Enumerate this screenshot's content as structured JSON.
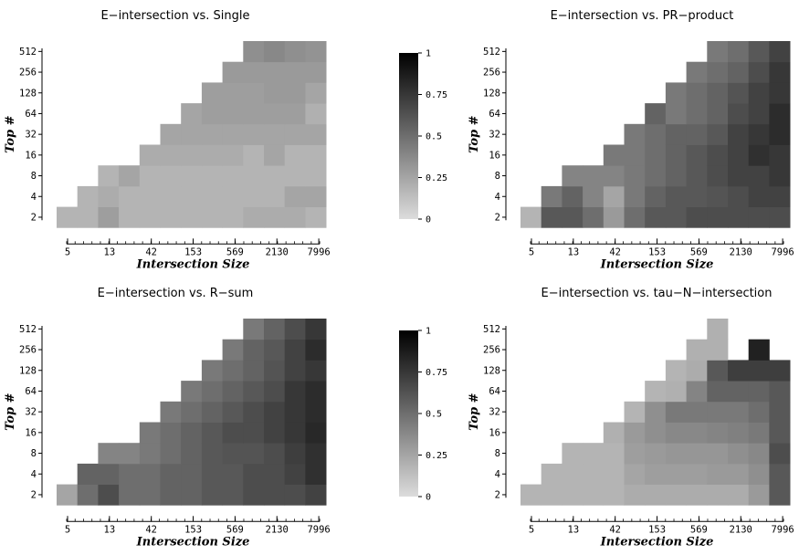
{
  "chart_data": [
    {
      "type": "heatmap",
      "title": "E−intersection vs. Single",
      "xlabel": "Intersection Size",
      "ylabel": "Top #",
      "x_ticks": [
        "5",
        "13",
        "42",
        "153",
        "569",
        "2130",
        "7996"
      ],
      "y_ticks": [
        "2",
        "4",
        "8",
        "16",
        "32",
        "64",
        "128",
        "256",
        "512"
      ],
      "row_starts": [
        0,
        1,
        2,
        4,
        5,
        6,
        7,
        8,
        9
      ],
      "row_ends": [
        12,
        12,
        12,
        12,
        12,
        12,
        12,
        12,
        12
      ],
      "values": [
        [
          0.18,
          0.18,
          0.28,
          0.18,
          0.18,
          0.18,
          0.18,
          0.18,
          0.18,
          0.22,
          0.22,
          0.22,
          0.18
        ],
        [
          null,
          0.18,
          0.22,
          0.18,
          0.18,
          0.18,
          0.18,
          0.18,
          0.18,
          0.18,
          0.18,
          0.25,
          0.25
        ],
        [
          null,
          null,
          0.18,
          0.25,
          0.18,
          0.18,
          0.18,
          0.18,
          0.18,
          0.18,
          0.18,
          0.18,
          0.18
        ],
        [
          null,
          null,
          null,
          null,
          0.22,
          0.22,
          0.22,
          0.22,
          0.22,
          0.18,
          0.25,
          0.18,
          0.18
        ],
        [
          null,
          null,
          null,
          null,
          null,
          0.25,
          0.25,
          0.25,
          0.25,
          0.25,
          0.25,
          0.25,
          0.25
        ],
        [
          null,
          null,
          null,
          null,
          null,
          null,
          0.25,
          0.28,
          0.28,
          0.28,
          0.28,
          0.28,
          0.2
        ],
        [
          null,
          null,
          null,
          null,
          null,
          null,
          null,
          0.28,
          0.28,
          0.28,
          0.3,
          0.3,
          0.25
        ],
        [
          null,
          null,
          null,
          null,
          null,
          null,
          null,
          null,
          0.3,
          0.3,
          0.3,
          0.3,
          0.3
        ],
        [
          null,
          null,
          null,
          null,
          null,
          null,
          null,
          null,
          null,
          0.35,
          0.38,
          0.35,
          0.33
        ]
      ]
    },
    {
      "type": "heatmap",
      "title": "E−intersection vs. PR−product",
      "xlabel": "Intersection Size",
      "ylabel": "Top #",
      "x_ticks": [
        "5",
        "13",
        "42",
        "153",
        "569",
        "2130",
        "7996"
      ],
      "y_ticks": [
        "2",
        "4",
        "8",
        "16",
        "32",
        "64",
        "128",
        "256",
        "512"
      ],
      "row_starts": [
        0,
        1,
        2,
        4,
        5,
        6,
        7,
        8,
        9
      ],
      "row_ends": [
        12,
        12,
        12,
        12,
        12,
        12,
        12,
        12,
        12
      ],
      "values": [
        [
          0.18,
          0.6,
          0.6,
          0.5,
          0.3,
          0.5,
          0.6,
          0.6,
          0.65,
          0.65,
          0.65,
          0.65,
          0.65
        ],
        [
          null,
          0.45,
          0.55,
          0.4,
          0.25,
          0.45,
          0.55,
          0.6,
          0.6,
          0.62,
          0.65,
          0.7,
          0.7
        ],
        [
          null,
          null,
          0.4,
          0.4,
          0.4,
          0.45,
          0.5,
          0.55,
          0.6,
          0.65,
          0.7,
          0.7,
          0.75
        ],
        [
          null,
          null,
          null,
          null,
          0.45,
          0.45,
          0.5,
          0.55,
          0.6,
          0.65,
          0.7,
          0.78,
          0.75
        ],
        [
          null,
          null,
          null,
          null,
          null,
          0.45,
          0.5,
          0.55,
          0.55,
          0.6,
          0.7,
          0.75,
          0.8
        ],
        [
          null,
          null,
          null,
          null,
          null,
          null,
          0.55,
          0.45,
          0.5,
          0.55,
          0.65,
          0.7,
          0.8
        ],
        [
          null,
          null,
          null,
          null,
          null,
          null,
          null,
          0.45,
          0.5,
          0.55,
          0.62,
          0.7,
          0.75
        ],
        [
          null,
          null,
          null,
          null,
          null,
          null,
          null,
          null,
          0.45,
          0.5,
          0.55,
          0.65,
          0.75
        ],
        [
          null,
          null,
          null,
          null,
          null,
          null,
          null,
          null,
          null,
          0.45,
          0.5,
          0.6,
          0.7
        ]
      ]
    },
    {
      "type": "heatmap",
      "title": "E−intersection vs. R−sum",
      "xlabel": "Intersection Size",
      "ylabel": "Top #",
      "x_ticks": [
        "5",
        "13",
        "42",
        "153",
        "569",
        "2130",
        "7996"
      ],
      "y_ticks": [
        "2",
        "4",
        "8",
        "16",
        "32",
        "64",
        "128",
        "256",
        "512"
      ],
      "row_starts": [
        0,
        1,
        2,
        4,
        5,
        6,
        7,
        8,
        9
      ],
      "row_ends": [
        12,
        12,
        12,
        12,
        12,
        12,
        12,
        12,
        12
      ],
      "values": [
        [
          0.25,
          0.5,
          0.65,
          0.5,
          0.5,
          0.55,
          0.55,
          0.6,
          0.6,
          0.65,
          0.65,
          0.65,
          0.7
        ],
        [
          null,
          0.55,
          0.55,
          0.5,
          0.5,
          0.55,
          0.55,
          0.6,
          0.6,
          0.65,
          0.65,
          0.7,
          0.78
        ],
        [
          null,
          null,
          0.4,
          0.4,
          0.45,
          0.5,
          0.55,
          0.6,
          0.62,
          0.62,
          0.65,
          0.72,
          0.78
        ],
        [
          null,
          null,
          null,
          null,
          0.45,
          0.5,
          0.55,
          0.6,
          0.65,
          0.65,
          0.7,
          0.75,
          0.82
        ],
        [
          null,
          null,
          null,
          null,
          null,
          0.45,
          0.5,
          0.55,
          0.6,
          0.65,
          0.7,
          0.75,
          0.8
        ],
        [
          null,
          null,
          null,
          null,
          null,
          null,
          0.45,
          0.5,
          0.55,
          0.6,
          0.65,
          0.75,
          0.8
        ],
        [
          null,
          null,
          null,
          null,
          null,
          null,
          null,
          0.45,
          0.5,
          0.55,
          0.62,
          0.7,
          0.75
        ],
        [
          null,
          null,
          null,
          null,
          null,
          null,
          null,
          null,
          0.45,
          0.55,
          0.6,
          0.7,
          0.8
        ],
        [
          null,
          null,
          null,
          null,
          null,
          null,
          null,
          null,
          null,
          0.45,
          0.55,
          0.65,
          0.75
        ]
      ]
    },
    {
      "type": "heatmap",
      "title": "E−intersection vs. tau−N−intersection",
      "xlabel": "Intersection Size",
      "ylabel": "Top #",
      "x_ticks": [
        "5",
        "13",
        "42",
        "153",
        "569",
        "2130",
        "7996"
      ],
      "y_ticks": [
        "2",
        "4",
        "8",
        "16",
        "32",
        "64",
        "128",
        "256",
        "512"
      ],
      "row_starts": [
        0,
        1,
        2,
        4,
        5,
        6,
        7,
        8,
        9
      ],
      "row_ends": [
        12,
        12,
        12,
        12,
        12,
        12,
        12,
        12,
        12
      ],
      "values": [
        [
          0.18,
          0.18,
          0.18,
          0.18,
          0.18,
          0.22,
          0.22,
          0.22,
          0.22,
          0.22,
          0.22,
          0.3,
          0.6
        ],
        [
          null,
          0.18,
          0.18,
          0.18,
          0.18,
          0.25,
          0.28,
          0.28,
          0.28,
          0.3,
          0.3,
          0.35,
          0.6
        ],
        [
          null,
          null,
          0.18,
          0.18,
          0.18,
          0.28,
          0.3,
          0.32,
          0.32,
          0.32,
          0.35,
          0.38,
          0.65
        ],
        [
          null,
          null,
          null,
          null,
          0.2,
          0.3,
          0.35,
          0.38,
          0.38,
          0.4,
          0.42,
          0.45,
          0.6
        ],
        [
          null,
          null,
          null,
          null,
          null,
          0.18,
          0.35,
          0.45,
          0.45,
          0.45,
          0.45,
          0.5,
          0.6
        ],
        [
          null,
          null,
          null,
          null,
          null,
          null,
          0.18,
          0.2,
          0.4,
          0.55,
          0.55,
          0.55,
          0.6
        ],
        [
          null,
          null,
          null,
          null,
          null,
          null,
          null,
          0.18,
          0.22,
          0.6,
          0.72,
          0.72,
          0.72
        ],
        [
          null,
          null,
          null,
          null,
          null,
          null,
          null,
          null,
          0.2,
          0.2,
          null,
          0.85,
          null
        ],
        [
          null,
          null,
          null,
          null,
          null,
          null,
          null,
          null,
          null,
          0.2,
          null,
          null,
          null
        ]
      ]
    }
  ],
  "colorbar": {
    "ticks": [
      "0",
      "0.25",
      "0.5",
      "0.75",
      "1"
    ],
    "range": [
      0,
      1
    ],
    "low_color": "#dcdcdc",
    "high_color": "#000000"
  }
}
